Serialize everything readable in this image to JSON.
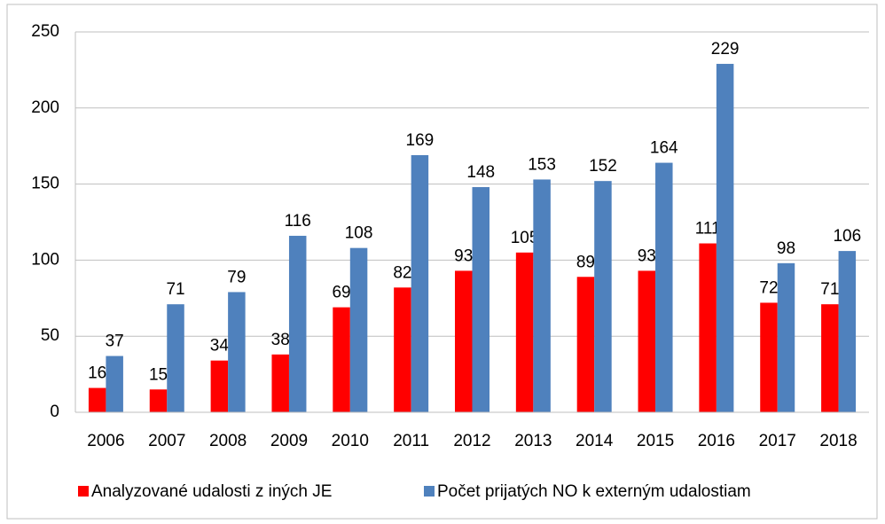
{
  "chart_data": {
    "type": "bar",
    "categories": [
      "2006",
      "2007",
      "2008",
      "2009",
      "2010",
      "2011",
      "2012",
      "2013",
      "2014",
      "2015",
      "2016",
      "2017",
      "2018"
    ],
    "series": [
      {
        "name": "Analyzované udalosti z iných JE",
        "color": "#ff0000",
        "values": [
          16,
          15,
          34,
          38,
          69,
          82,
          93,
          105,
          89,
          93,
          111,
          72,
          71
        ]
      },
      {
        "name": "Počet prijatých NO k externým udalostiam",
        "color": "#4f81bd",
        "values": [
          37,
          71,
          79,
          116,
          108,
          169,
          148,
          153,
          152,
          164,
          229,
          98,
          106
        ]
      }
    ],
    "ylim": [
      0,
      250
    ],
    "yticks": [
      0,
      50,
      100,
      150,
      200,
      250
    ],
    "grid": true,
    "legend": "bottom"
  }
}
